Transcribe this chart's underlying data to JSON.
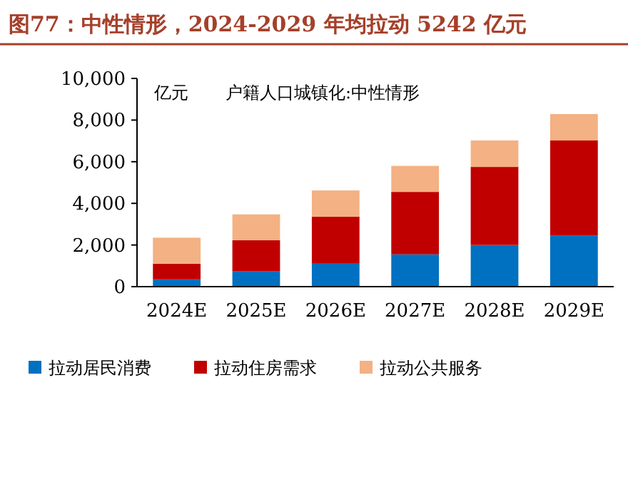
{
  "chart_data": {
    "type": "bar",
    "title": "图77：中性情形，2024-2029 年均拉动 5242 亿元",
    "subtitle": "户籍人口城镇化:中性情形",
    "ylabel": "亿元",
    "categories": [
      "2024E",
      "2025E",
      "2026E",
      "2027E",
      "2028E",
      "2029E"
    ],
    "stacked": true,
    "ylim": [
      0,
      10000
    ],
    "yticks": [
      {
        "value": 0,
        "label": "0"
      },
      {
        "value": 2000,
        "label": "2,000"
      },
      {
        "value": 4000,
        "label": "4,000"
      },
      {
        "value": 6000,
        "label": "6,000"
      },
      {
        "value": 8000,
        "label": "8,000"
      },
      {
        "value": 10000,
        "label": "10,000"
      }
    ],
    "legend": "bottom",
    "series": [
      {
        "name": "拉动居民消费",
        "color": "#0070c0",
        "values": [
          350,
          730,
          1130,
          1550,
          2000,
          2460
        ]
      },
      {
        "name": "拉动住房需求",
        "color": "#c00000",
        "values": [
          750,
          1500,
          2230,
          3000,
          3750,
          4560
        ]
      },
      {
        "name": "拉动公共服务",
        "color": "#f4b183",
        "values": [
          1250,
          1240,
          1260,
          1250,
          1270,
          1270
        ]
      }
    ]
  }
}
